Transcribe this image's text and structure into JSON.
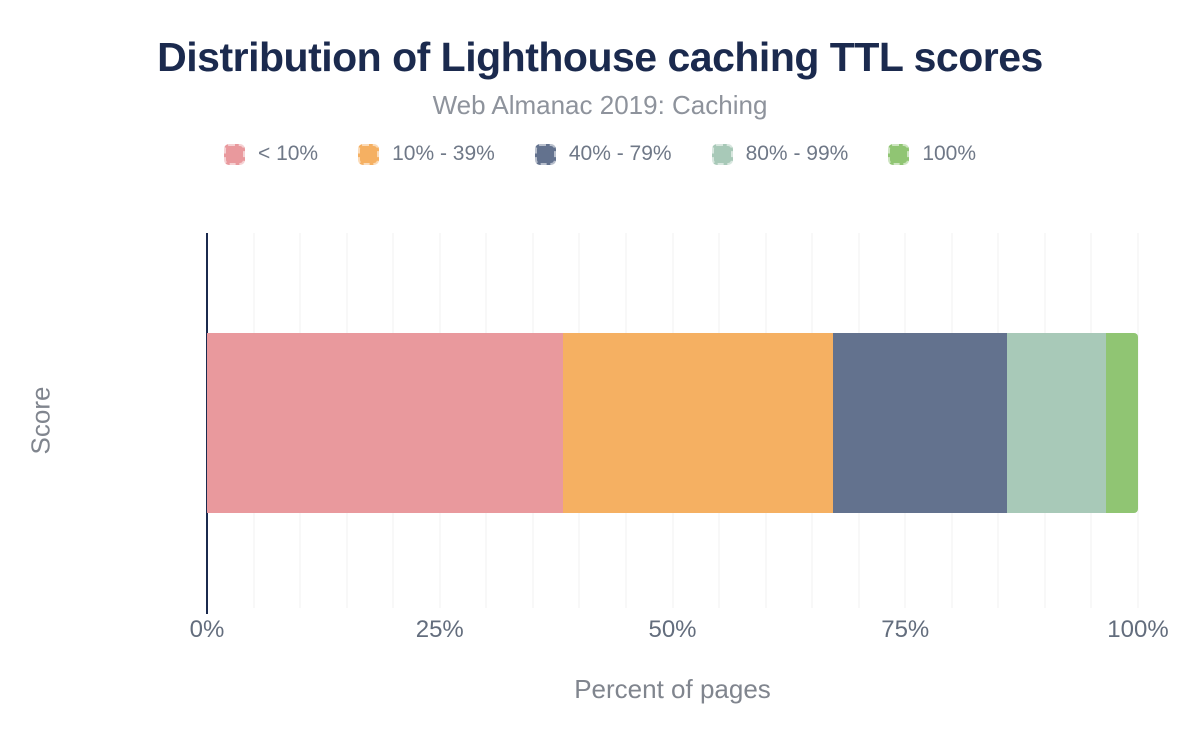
{
  "theme": {
    "title_color": "#1b2a4e",
    "subtitle_color": "#8e939c",
    "legend_label_color": "#6f7887",
    "tick_label_color": "#636d7d",
    "axis_title_color": "#80858e",
    "axis_line_color": "#1b2a4e",
    "gridline_color": "#f2f2f2",
    "background_color": "#ffffff"
  },
  "chart_data": {
    "type": "bar",
    "stacked": true,
    "orientation": "horizontal",
    "title": "Distribution of Lighthouse caching TTL scores",
    "subtitle": "Web Almanac 2019: Caching",
    "categories": [
      "Score"
    ],
    "series": [
      {
        "name": "< 10%",
        "color": "#e9999d",
        "values": [
          38.2
        ]
      },
      {
        "name": "10% - 39%",
        "color": "#f5b062",
        "values": [
          29.0
        ]
      },
      {
        "name": "40% - 79%",
        "color": "#63728e",
        "values": [
          18.7
        ]
      },
      {
        "name": "80% - 99%",
        "color": "#a8c9b8",
        "values": [
          10.7
        ]
      },
      {
        "name": "100%",
        "color": "#90c573",
        "values": [
          3.4
        ]
      }
    ],
    "xlabel": "Percent of pages",
    "ylabel": "Score",
    "xlim": [
      0,
      100
    ],
    "x_ticks": [
      {
        "value": 0,
        "label": "0%"
      },
      {
        "value": 25,
        "label": "25%"
      },
      {
        "value": 50,
        "label": "50%"
      },
      {
        "value": 75,
        "label": "75%"
      },
      {
        "value": 100,
        "label": "100%"
      }
    ],
    "grid": true,
    "grid_step": 5,
    "legend_position": "top"
  }
}
